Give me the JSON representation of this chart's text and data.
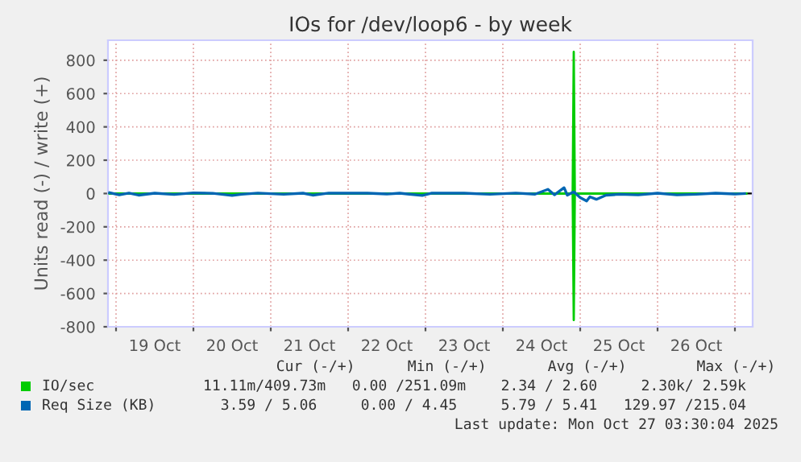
{
  "chart_data": {
    "type": "line",
    "title": "IOs for /dev/loop6 - by week",
    "ylabel": "Units read (-) / write (+)",
    "series": [
      {
        "name": "IO/sec",
        "color": "#00cc00",
        "x": [
          "2025-10-18T22:00",
          "2025-10-24T21:40",
          "2025-10-24T22:00",
          "2025-10-24T22:20",
          "2025-10-27T03:30"
        ],
        "values": [
          0,
          0,
          850,
          0,
          0
        ]
      },
      {
        "color": "#00cc00",
        "x": [
          "2025-10-18T22:00",
          "2025-10-24T21:40",
          "2025-10-24T22:00",
          "2025-10-24T22:20",
          "2025-10-27T03:30"
        ],
        "values": [
          0,
          0,
          -760,
          0,
          0
        ]
      },
      {
        "name": "Req Size (KB)",
        "color": "#0066b3",
        "x": [
          "2025-10-18T22:00",
          "2025-10-19T01:00",
          "2025-10-19T04:00",
          "2025-10-19T07:00",
          "2025-10-19T12:00",
          "2025-10-19T18:00",
          "2025-10-20T00:00",
          "2025-10-20T06:00",
          "2025-10-20T12:00",
          "2025-10-20T15:00",
          "2025-10-20T20:00",
          "2025-10-21T04:00",
          "2025-10-21T10:00",
          "2025-10-21T13:00",
          "2025-10-21T18:00",
          "2025-10-22T06:00",
          "2025-10-22T12:00",
          "2025-10-22T16:00",
          "2025-10-22T23:00",
          "2025-10-23T02:00",
          "2025-10-23T12:00",
          "2025-10-23T20:00",
          "2025-10-24T04:00",
          "2025-10-24T10:00",
          "2025-10-24T14:00",
          "2025-10-24T16:00",
          "2025-10-24T19:00",
          "2025-10-24T20:00",
          "2025-10-24T22:00",
          "2025-10-25T00:00",
          "2025-10-25T02:00",
          "2025-10-25T03:00",
          "2025-10-25T05:00",
          "2025-10-25T08:00",
          "2025-10-25T12:00",
          "2025-10-25T18:00",
          "2025-10-26T00:00",
          "2025-10-26T06:00",
          "2025-10-26T12:00",
          "2025-10-26T18:00",
          "2025-10-27T00:00",
          "2025-10-27T03:00"
        ],
        "values": [
          5,
          -8,
          3,
          -10,
          2,
          -6,
          4,
          1,
          -12,
          -5,
          3,
          -5,
          2,
          -10,
          3,
          2,
          -3,
          2,
          -12,
          3,
          2,
          -5,
          3,
          -4,
          25,
          -8,
          35,
          -10,
          10,
          -25,
          -45,
          -20,
          -35,
          -10,
          -5,
          -8,
          2,
          -8,
          -5,
          2,
          -3,
          0
        ]
      }
    ],
    "xlim": [
      "2025-10-18T21:30",
      "2025-10-27T05:30"
    ],
    "xticks": [
      {
        "value": "2025-10-19T00:00",
        "label": null
      },
      {
        "value": "2025-10-19T12:00",
        "label": "19 Oct"
      },
      {
        "value": "2025-10-20T00:00",
        "label": null
      },
      {
        "value": "2025-10-20T12:00",
        "label": "20 Oct"
      },
      {
        "value": "2025-10-21T00:00",
        "label": null
      },
      {
        "value": "2025-10-21T12:00",
        "label": "21 Oct"
      },
      {
        "value": "2025-10-22T00:00",
        "label": null
      },
      {
        "value": "2025-10-22T12:00",
        "label": "22 Oct"
      },
      {
        "value": "2025-10-23T00:00",
        "label": null
      },
      {
        "value": "2025-10-23T12:00",
        "label": "23 Oct"
      },
      {
        "value": "2025-10-24T00:00",
        "label": null
      },
      {
        "value": "2025-10-24T12:00",
        "label": "24 Oct"
      },
      {
        "value": "2025-10-25T00:00",
        "label": null
      },
      {
        "value": "2025-10-25T12:00",
        "label": "25 Oct"
      },
      {
        "value": "2025-10-26T00:00",
        "label": null
      },
      {
        "value": "2025-10-26T12:00",
        "label": "26 Oct"
      },
      {
        "value": "2025-10-27T00:00",
        "label": null
      }
    ],
    "ylim": [
      -800,
      920
    ],
    "yticks": [
      -800,
      -600,
      -400,
      -200,
      0,
      200,
      400,
      600,
      800
    ],
    "ref_lines": [
      {
        "axis": "y",
        "value": 0,
        "color": "#000000"
      }
    ],
    "grid": true,
    "legend": "bottom",
    "annotations": [
      "          Cur (-/+)      Min (-/+)       Avg (-/+)        Max (-/+)",
      "11.11m/409.73m   0.00 /251.09m    2.34 / 2.60     2.30k/ 2.59k",
      "  3.59 / 5.06     0.00 / 4.45     5.79 / 5.41   129.97 /215.04",
      "Last update: Mon Oct 27 03:30:04 2025"
    ]
  }
}
